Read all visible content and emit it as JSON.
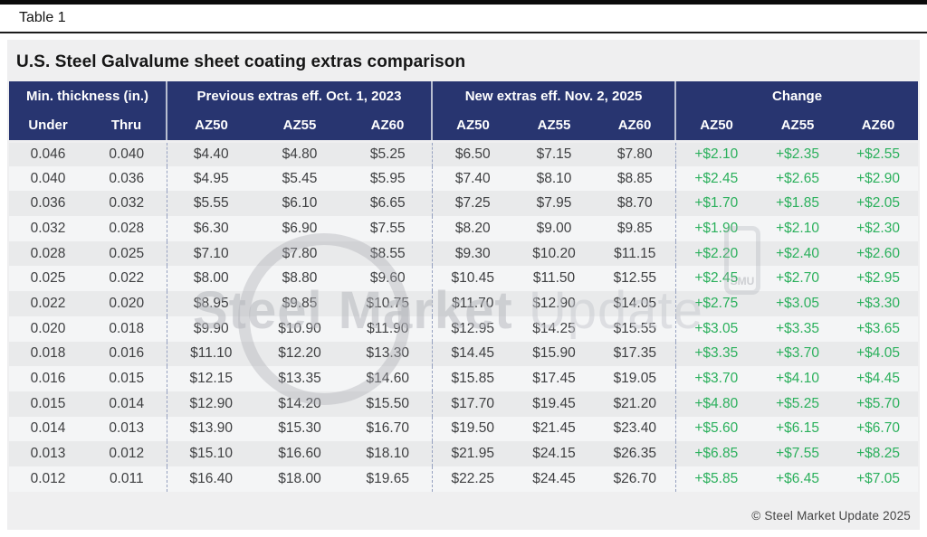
{
  "table_label": "Table 1",
  "title": "U.S. Steel Galvalume sheet coating extras comparison",
  "footer": "© Steel Market Update 2025",
  "watermark": {
    "primary": "Steel Market ",
    "secondary": "Update",
    "badge": "SMU"
  },
  "colors": {
    "header_bg": "#283570",
    "change_green": "#2bb05c",
    "row_odd": "#e9eaeb",
    "row_even": "#f4f5f6",
    "card_bg": "#efeff0"
  },
  "chart_data": {
    "type": "table",
    "title": "U.S. Steel Galvalume sheet coating extras comparison",
    "column_groups": [
      {
        "label": "Min. thickness (in.)",
        "columns": [
          "Under",
          "Thru"
        ]
      },
      {
        "label": "Previous extras eff. Oct. 1, 2023",
        "columns": [
          "AZ50",
          "AZ55",
          "AZ60"
        ]
      },
      {
        "label": "New extras eff. Nov. 2, 2025",
        "columns": [
          "AZ50",
          "AZ55",
          "AZ60"
        ]
      },
      {
        "label": "Change",
        "columns": [
          "AZ50",
          "AZ55",
          "AZ60"
        ]
      }
    ],
    "rows": [
      [
        "0.046",
        "0.040",
        "$4.40",
        "$4.80",
        "$5.25",
        "$6.50",
        "$7.15",
        "$7.80",
        "+$2.10",
        "+$2.35",
        "+$2.55"
      ],
      [
        "0.040",
        "0.036",
        "$4.95",
        "$5.45",
        "$5.95",
        "$7.40",
        "$8.10",
        "$8.85",
        "+$2.45",
        "+$2.65",
        "+$2.90"
      ],
      [
        "0.036",
        "0.032",
        "$5.55",
        "$6.10",
        "$6.65",
        "$7.25",
        "$7.95",
        "$8.70",
        "+$1.70",
        "+$1.85",
        "+$2.05"
      ],
      [
        "0.032",
        "0.028",
        "$6.30",
        "$6.90",
        "$7.55",
        "$8.20",
        "$9.00",
        "$9.85",
        "+$1.90",
        "+$2.10",
        "+$2.30"
      ],
      [
        "0.028",
        "0.025",
        "$7.10",
        "$7.80",
        "$8.55",
        "$9.30",
        "$10.20",
        "$11.15",
        "+$2.20",
        "+$2.40",
        "+$2.60"
      ],
      [
        "0.025",
        "0.022",
        "$8.00",
        "$8.80",
        "$9.60",
        "$10.45",
        "$11.50",
        "$12.55",
        "+$2.45",
        "+$2.70",
        "+$2.95"
      ],
      [
        "0.022",
        "0.020",
        "$8.95",
        "$9.85",
        "$10.75",
        "$11.70",
        "$12.90",
        "$14.05",
        "+$2.75",
        "+$3.05",
        "+$3.30"
      ],
      [
        "0.020",
        "0.018",
        "$9.90",
        "$10.90",
        "$11.90",
        "$12.95",
        "$14.25",
        "$15.55",
        "+$3.05",
        "+$3.35",
        "+$3.65"
      ],
      [
        "0.018",
        "0.016",
        "$11.10",
        "$12.20",
        "$13.30",
        "$14.45",
        "$15.90",
        "$17.35",
        "+$3.35",
        "+$3.70",
        "+$4.05"
      ],
      [
        "0.016",
        "0.015",
        "$12.15",
        "$13.35",
        "$14.60",
        "$15.85",
        "$17.45",
        "$19.05",
        "+$3.70",
        "+$4.10",
        "+$4.45"
      ],
      [
        "0.015",
        "0.014",
        "$12.90",
        "$14.20",
        "$15.50",
        "$17.70",
        "$19.45",
        "$21.20",
        "+$4.80",
        "+$5.25",
        "+$5.70"
      ],
      [
        "0.014",
        "0.013",
        "$13.90",
        "$15.30",
        "$16.70",
        "$19.50",
        "$21.45",
        "$23.40",
        "+$5.60",
        "+$6.15",
        "+$6.70"
      ],
      [
        "0.013",
        "0.012",
        "$15.10",
        "$16.60",
        "$18.10",
        "$21.95",
        "$24.15",
        "$26.35",
        "+$6.85",
        "+$7.55",
        "+$8.25"
      ],
      [
        "0.012",
        "0.011",
        "$16.40",
        "$18.00",
        "$19.65",
        "$22.25",
        "$24.45",
        "$26.70",
        "+$5.85",
        "+$6.45",
        "+$7.05"
      ]
    ]
  }
}
